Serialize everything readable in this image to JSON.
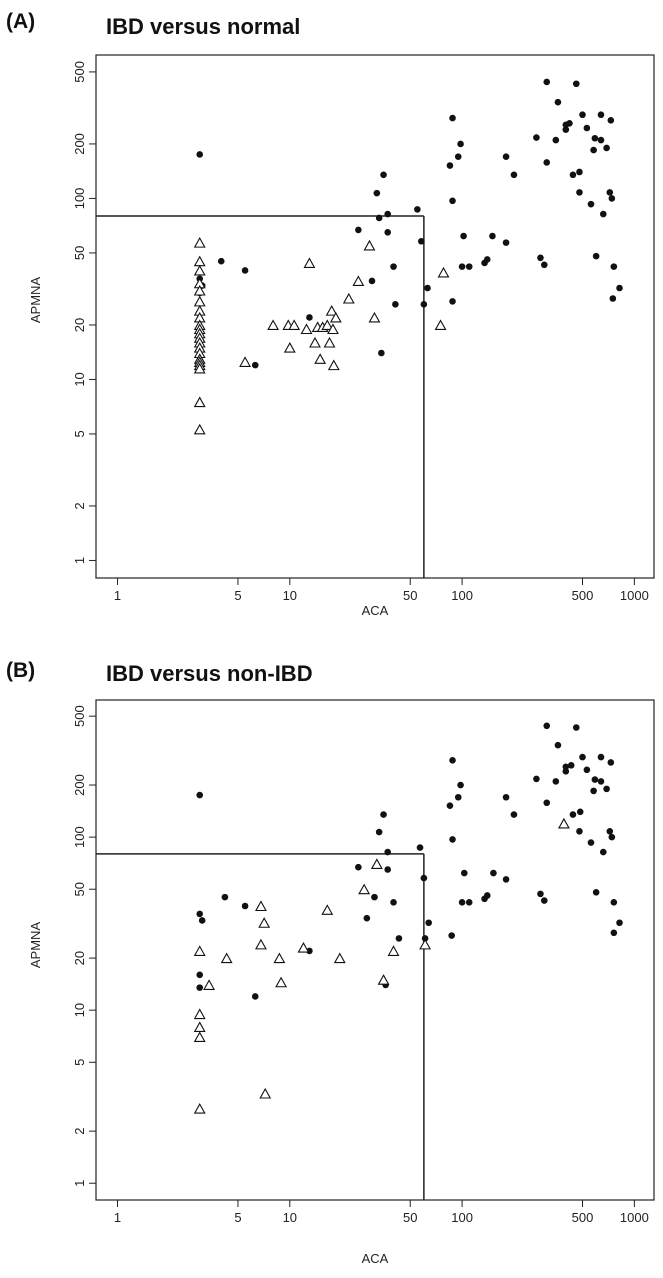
{
  "figure": {
    "panels": [
      {
        "label": "(A)",
        "title": "IBD versus normal"
      },
      {
        "label": "(B)",
        "title": "IBD versus non-IBD"
      }
    ]
  },
  "colors": {
    "points": "#111111",
    "axes": "#222222"
  },
  "chart_data": [
    {
      "type": "scatter",
      "title": "IBD versus normal",
      "xlabel": "ACA",
      "ylabel": "APMNA",
      "x_scale": "log",
      "y_scale": "log",
      "xlim": [
        0.75,
        1300
      ],
      "ylim": [
        0.8,
        620
      ],
      "x_ticks": [
        1,
        5,
        10,
        50,
        100,
        500,
        1000
      ],
      "y_ticks": [
        1,
        2,
        5,
        10,
        20,
        50,
        100,
        200,
        500
      ],
      "grid": false,
      "cutoffs": {
        "x": 60,
        "y": 80
      },
      "series": [
        {
          "marker": "filled-circle",
          "points": [
            [
              3,
              175
            ],
            [
              3,
              36
            ],
            [
              3.1,
              33
            ],
            [
              3,
              30
            ],
            [
              4,
              45
            ],
            [
              5.5,
              40
            ],
            [
              6.3,
              12
            ],
            [
              13,
              22
            ],
            [
              25,
              67
            ],
            [
              30,
              35
            ],
            [
              32,
              107
            ],
            [
              33,
              78
            ],
            [
              35,
              135
            ],
            [
              34,
              14
            ],
            [
              37,
              65
            ],
            [
              37,
              82
            ],
            [
              40,
              42
            ],
            [
              41,
              26
            ],
            [
              55,
              87
            ],
            [
              58,
              58
            ],
            [
              60,
              26
            ],
            [
              63,
              32
            ],
            [
              88,
              278
            ],
            [
              85,
              152
            ],
            [
              95,
              170
            ],
            [
              98,
              200
            ],
            [
              88,
              97
            ],
            [
              88,
              27
            ],
            [
              100,
              42
            ],
            [
              102,
              62
            ],
            [
              110,
              42
            ],
            [
              135,
              44
            ],
            [
              140,
              46
            ],
            [
              150,
              62
            ],
            [
              180,
              57
            ],
            [
              180,
              170
            ],
            [
              200,
              135
            ],
            [
              270,
              217
            ],
            [
              285,
              47
            ],
            [
              300,
              43
            ],
            [
              310,
              440
            ],
            [
              310,
              158
            ],
            [
              350,
              210
            ],
            [
              360,
              340
            ],
            [
              400,
              240
            ],
            [
              400,
              255
            ],
            [
              420,
              260
            ],
            [
              440,
              135
            ],
            [
              460,
              430
            ],
            [
              480,
              140
            ],
            [
              480,
              108
            ],
            [
              500,
              290
            ],
            [
              530,
              245
            ],
            [
              560,
              93
            ],
            [
              580,
              185
            ],
            [
              590,
              215
            ],
            [
              600,
              48
            ],
            [
              640,
              210
            ],
            [
              640,
              290
            ],
            [
              660,
              82
            ],
            [
              690,
              190
            ],
            [
              720,
              108
            ],
            [
              730,
              270
            ],
            [
              740,
              100
            ],
            [
              760,
              42
            ],
            [
              750,
              28
            ],
            [
              820,
              32
            ]
          ]
        },
        {
          "marker": "open-triangle",
          "points": [
            [
              3,
              57
            ],
            [
              3,
              45
            ],
            [
              3,
              40
            ],
            [
              3,
              34
            ],
            [
              3,
              31
            ],
            [
              3,
              27
            ],
            [
              3,
              24
            ],
            [
              3,
              22
            ],
            [
              3,
              20
            ],
            [
              3,
              19
            ],
            [
              3,
              18
            ],
            [
              3,
              17
            ],
            [
              3,
              16
            ],
            [
              3,
              15
            ],
            [
              3,
              14
            ],
            [
              3,
              13
            ],
            [
              3,
              12.5
            ],
            [
              3,
              12
            ],
            [
              3,
              11.5
            ],
            [
              3,
              7.5
            ],
            [
              3,
              5.3
            ],
            [
              5.5,
              12.5
            ],
            [
              8,
              20
            ],
            [
              9.8,
              20
            ],
            [
              10,
              15
            ],
            [
              10.6,
              20
            ],
            [
              12.5,
              19
            ],
            [
              13,
              44
            ],
            [
              14,
              16
            ],
            [
              14.5,
              19.5
            ],
            [
              15,
              13
            ],
            [
              15.5,
              19.5
            ],
            [
              16.5,
              20
            ],
            [
              17,
              16
            ],
            [
              17.5,
              24
            ],
            [
              17.8,
              19
            ],
            [
              18,
              12
            ],
            [
              18.5,
              22
            ],
            [
              22,
              28
            ],
            [
              25,
              35
            ],
            [
              29,
              55
            ],
            [
              31,
              22
            ],
            [
              75,
              20
            ],
            [
              78,
              39
            ]
          ]
        }
      ]
    },
    {
      "type": "scatter",
      "title": "IBD versus non-IBD",
      "xlabel": "ACA",
      "ylabel": "APMNA",
      "x_scale": "log",
      "y_scale": "log",
      "xlim": [
        0.75,
        1300
      ],
      "ylim": [
        0.8,
        620
      ],
      "x_ticks": [
        1,
        5,
        10,
        50,
        100,
        500,
        1000
      ],
      "y_ticks": [
        1,
        2,
        5,
        10,
        20,
        50,
        100,
        200,
        500
      ],
      "grid": false,
      "cutoffs": {
        "x": 60,
        "y": 80
      },
      "series": [
        {
          "marker": "filled-circle",
          "points": [
            [
              3,
              175
            ],
            [
              3,
              36
            ],
            [
              3.1,
              33
            ],
            [
              3,
              16
            ],
            [
              3,
              13.5
            ],
            [
              4.2,
              45
            ],
            [
              5.5,
              40
            ],
            [
              6.3,
              12
            ],
            [
              13,
              22
            ],
            [
              25,
              67
            ],
            [
              28,
              34
            ],
            [
              31,
              45
            ],
            [
              33,
              107
            ],
            [
              35,
              135
            ],
            [
              36,
              14
            ],
            [
              37,
              65
            ],
            [
              37,
              82
            ],
            [
              40,
              42
            ],
            [
              43,
              26
            ],
            [
              57,
              87
            ],
            [
              60,
              58
            ],
            [
              61,
              26
            ],
            [
              64,
              32
            ],
            [
              88,
              278
            ],
            [
              85,
              152
            ],
            [
              95,
              170
            ],
            [
              98,
              200
            ],
            [
              88,
              97
            ],
            [
              87,
              27
            ],
            [
              100,
              42
            ],
            [
              103,
              62
            ],
            [
              110,
              42
            ],
            [
              135,
              44
            ],
            [
              140,
              46
            ],
            [
              152,
              62
            ],
            [
              180,
              57
            ],
            [
              180,
              170
            ],
            [
              200,
              135
            ],
            [
              270,
              217
            ],
            [
              285,
              47
            ],
            [
              300,
              43
            ],
            [
              310,
              440
            ],
            [
              310,
              158
            ],
            [
              350,
              210
            ],
            [
              360,
              340
            ],
            [
              400,
              240
            ],
            [
              400,
              255
            ],
            [
              430,
              260
            ],
            [
              440,
              135
            ],
            [
              460,
              430
            ],
            [
              485,
              140
            ],
            [
              480,
              108
            ],
            [
              500,
              290
            ],
            [
              530,
              245
            ],
            [
              560,
              93
            ],
            [
              580,
              185
            ],
            [
              590,
              215
            ],
            [
              600,
              48
            ],
            [
              640,
              210
            ],
            [
              640,
              290
            ],
            [
              660,
              82
            ],
            [
              690,
              190
            ],
            [
              720,
              108
            ],
            [
              730,
              270
            ],
            [
              740,
              100
            ],
            [
              760,
              42
            ],
            [
              760,
              28
            ],
            [
              820,
              32
            ]
          ]
        },
        {
          "marker": "open-triangle",
          "points": [
            [
              3,
              22
            ],
            [
              3,
              9.5
            ],
            [
              3,
              8
            ],
            [
              3,
              7
            ],
            [
              3,
              2.7
            ],
            [
              3.4,
              14
            ],
            [
              4.3,
              20
            ],
            [
              6.8,
              40
            ],
            [
              6.8,
              24
            ],
            [
              7.1,
              32
            ],
            [
              7.2,
              3.3
            ],
            [
              8.7,
              20
            ],
            [
              8.9,
              14.5
            ],
            [
              12,
              23
            ],
            [
              16.5,
              38
            ],
            [
              19.5,
              20
            ],
            [
              27,
              50
            ],
            [
              32,
              70
            ],
            [
              35,
              15
            ],
            [
              40,
              22
            ],
            [
              61,
              24
            ],
            [
              390,
              120
            ]
          ]
        }
      ]
    }
  ]
}
